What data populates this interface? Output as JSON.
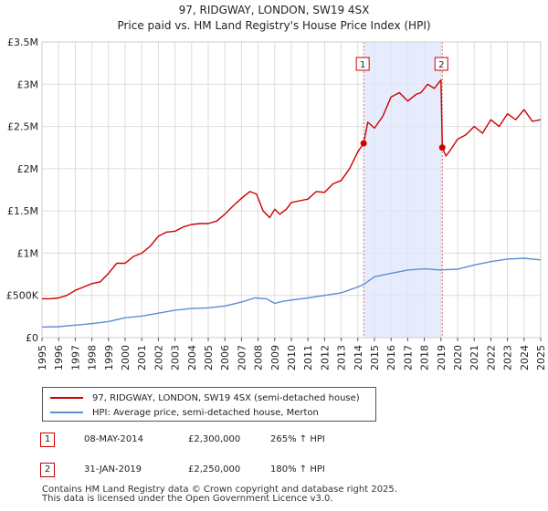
{
  "chart_data": {
    "type": "line",
    "title": "97, RIDGWAY, LONDON, SW19 4SX",
    "subtitle": "Price paid vs. HM Land Registry's House Price Index (HPI)",
    "xlabel": "",
    "ylabel": "",
    "xlim": [
      1995,
      2025
    ],
    "ylim": [
      0,
      3500000
    ],
    "y_ticks": [
      {
        "value": 0,
        "label": "£0"
      },
      {
        "value": 500000,
        "label": "£500K"
      },
      {
        "value": 1000000,
        "label": "£1M"
      },
      {
        "value": 1500000,
        "label": "£1.5M"
      },
      {
        "value": 2000000,
        "label": "£2M"
      },
      {
        "value": 2500000,
        "label": "£2.5M"
      },
      {
        "value": 3000000,
        "label": "£3M"
      },
      {
        "value": 3500000,
        "label": "£3.5M"
      }
    ],
    "x_ticks": [
      "1995",
      "1996",
      "1997",
      "1998",
      "1999",
      "2000",
      "2001",
      "2002",
      "2003",
      "2004",
      "2005",
      "2006",
      "2007",
      "2008",
      "2009",
      "2010",
      "2011",
      "2012",
      "2013",
      "2014",
      "2015",
      "2016",
      "2017",
      "2018",
      "2019",
      "2020",
      "2021",
      "2022",
      "2023",
      "2024",
      "2025"
    ],
    "grid": true,
    "highlight_band": [
      2014.35,
      2019.08
    ],
    "series": [
      {
        "name": "97, RIDGWAY, LONDON, SW19 4SX (semi-detached house)",
        "color": "#cc0000",
        "x": [
          1995.0,
          1995.5,
          1996.0,
          1996.5,
          1997.0,
          1997.5,
          1998.0,
          1998.5,
          1999.0,
          1999.5,
          2000.0,
          2000.5,
          2001.0,
          2001.5,
          2002.0,
          2002.5,
          2003.0,
          2003.5,
          2004.0,
          2004.5,
          2005.0,
          2005.5,
          2006.0,
          2006.5,
          2007.0,
          2007.5,
          2007.9,
          2008.3,
          2008.7,
          2009.0,
          2009.3,
          2009.7,
          2010.0,
          2010.5,
          2011.0,
          2011.5,
          2012.0,
          2012.5,
          2013.0,
          2013.5,
          2014.0,
          2014.35,
          2014.6,
          2015.0,
          2015.5,
          2016.0,
          2016.5,
          2017.0,
          2017.5,
          2017.8,
          2018.2,
          2018.6,
          2019.0,
          2019.08,
          2019.3,
          2019.6,
          2020.0,
          2020.5,
          2021.0,
          2021.5,
          2022.0,
          2022.5,
          2023.0,
          2023.5,
          2024.0,
          2024.5,
          2025.0
        ],
        "y": [
          460000,
          460000,
          470000,
          500000,
          560000,
          600000,
          640000,
          660000,
          760000,
          880000,
          880000,
          960000,
          1000000,
          1080000,
          1200000,
          1250000,
          1260000,
          1310000,
          1340000,
          1350000,
          1350000,
          1380000,
          1460000,
          1560000,
          1650000,
          1730000,
          1700000,
          1500000,
          1420000,
          1520000,
          1460000,
          1520000,
          1600000,
          1620000,
          1640000,
          1730000,
          1720000,
          1820000,
          1860000,
          2000000,
          2200000,
          2300000,
          2550000,
          2480000,
          2620000,
          2850000,
          2900000,
          2800000,
          2880000,
          2900000,
          3000000,
          2950000,
          3050000,
          2250000,
          2150000,
          2230000,
          2350000,
          2400000,
          2500000,
          2420000,
          2580000,
          2500000,
          2650000,
          2580000,
          2700000,
          2560000,
          2580000
        ]
      },
      {
        "name": "HPI: Average price, semi-detached house, Merton",
        "color": "#5b8fd0",
        "x": [
          1995.0,
          1996.0,
          1997.0,
          1998.0,
          1999.0,
          2000.0,
          2001.0,
          2002.0,
          2003.0,
          2004.0,
          2005.0,
          2006.0,
          2007.0,
          2007.8,
          2008.5,
          2009.0,
          2009.5,
          2010.0,
          2011.0,
          2012.0,
          2013.0,
          2014.0,
          2014.35,
          2015.0,
          2016.0,
          2017.0,
          2018.0,
          2019.0,
          2019.08,
          2020.0,
          2021.0,
          2022.0,
          2023.0,
          2024.0,
          2025.0
        ],
        "y": [
          125000,
          130000,
          148000,
          165000,
          190000,
          235000,
          255000,
          290000,
          325000,
          345000,
          352000,
          375000,
          420000,
          470000,
          460000,
          405000,
          430000,
          445000,
          470000,
          500000,
          530000,
          600000,
          630000,
          720000,
          760000,
          800000,
          815000,
          800000,
          803000,
          810000,
          860000,
          900000,
          930000,
          940000,
          920000
        ]
      }
    ],
    "sales": [
      {
        "label": "1",
        "x": 2014.35,
        "y": 2300000,
        "date": "08-MAY-2014",
        "price": "£2,300,000",
        "hpi": "265% ↑ HPI"
      },
      {
        "label": "2",
        "x": 2019.08,
        "y": 2250000,
        "date": "31-JAN-2019",
        "price": "£2,250,000",
        "hpi": "180% ↑ HPI"
      }
    ]
  },
  "legend": {
    "property_label": "97, RIDGWAY, LONDON, SW19 4SX (semi-detached house)",
    "hpi_label": "HPI: Average price, semi-detached house, Merton"
  },
  "footer": {
    "line1": "Contains HM Land Registry data © Crown copyright and database right 2025.",
    "line2": "This data is licensed under the Open Government Licence v3.0."
  }
}
